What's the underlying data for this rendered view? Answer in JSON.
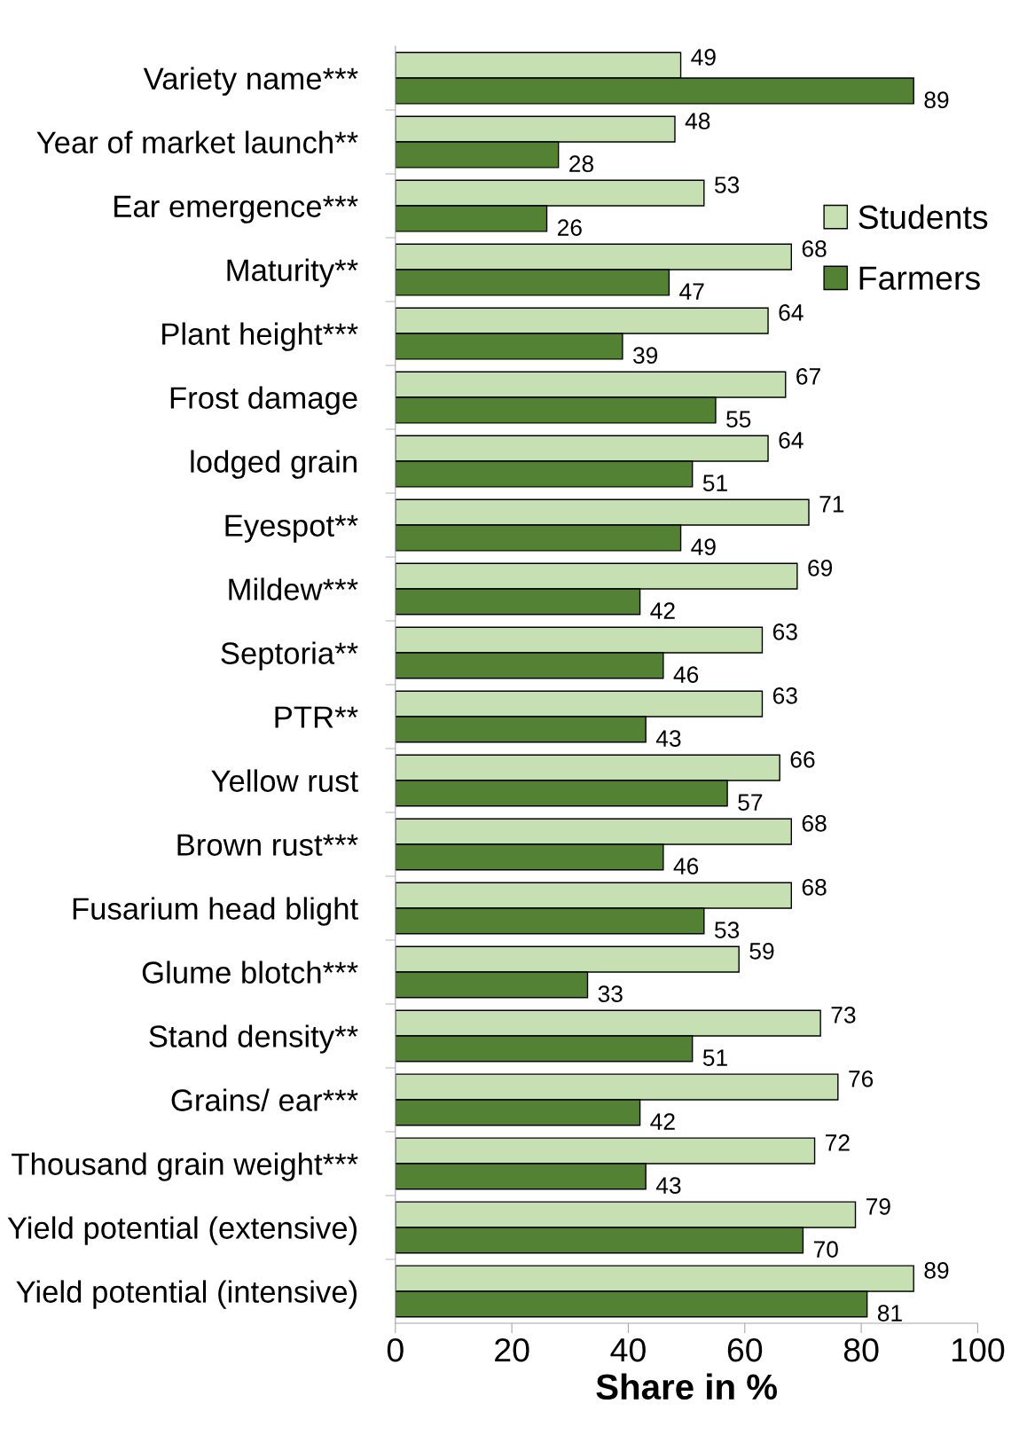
{
  "chart_data": {
    "type": "bar",
    "orientation": "horizontal",
    "xlabel": "Share in %",
    "categories": [
      "Variety name***",
      "Year of market launch**",
      "Ear emergence***",
      "Maturity**",
      "Plant height***",
      "Frost damage",
      "lodged grain",
      "Eyespot**",
      "Mildew***",
      "Septoria**",
      "PTR**",
      "Yellow rust",
      "Brown rust***",
      "Fusarium head blight",
      "Glume blotch***",
      "Stand density**",
      "Grains/ ear***",
      "Thousand grain weight***",
      "Yield potential (extensive)",
      "Yield potential (intensive)"
    ],
    "series": [
      {
        "name": "Students",
        "color": "#c6e0b4",
        "values": [
          49,
          48,
          53,
          68,
          64,
          67,
          64,
          71,
          69,
          63,
          63,
          66,
          68,
          68,
          59,
          73,
          76,
          72,
          79,
          89
        ]
      },
      {
        "name": "Farmers",
        "color": "#548235",
        "values": [
          89,
          28,
          26,
          47,
          39,
          55,
          51,
          49,
          42,
          46,
          43,
          57,
          46,
          53,
          33,
          51,
          42,
          43,
          70,
          81
        ]
      }
    ],
    "xlim": [
      0,
      100
    ],
    "xticks": [
      0,
      20,
      40,
      60,
      80,
      100
    ],
    "grid": false,
    "legend": "right",
    "data_labels": true
  }
}
